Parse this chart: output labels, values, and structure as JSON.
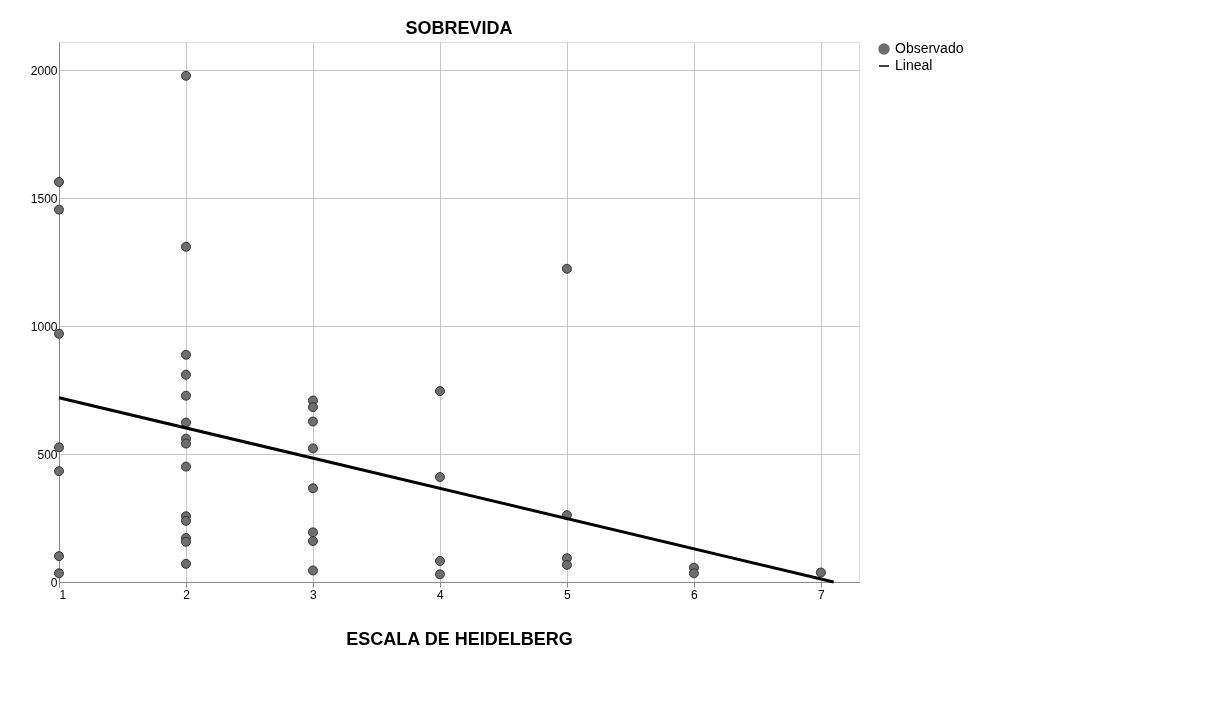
{
  "chart_data": {
    "type": "scatter",
    "title": "SOBREVIDA",
    "xlabel": "ESCALA DE HEIDELBERG",
    "xlim": [
      1,
      7.3
    ],
    "xticks": [
      1,
      2,
      3,
      4,
      5,
      6,
      7
    ],
    "ylim": [
      0,
      2110
    ],
    "yticks": [
      0,
      500,
      1000,
      1500,
      2000
    ],
    "grid": true,
    "legend": "top right",
    "series": [
      {
        "name": "Observado",
        "marker": "circle",
        "color": "#6e6e6e",
        "x": [
          1,
          1,
          1,
          1,
          1,
          1,
          1,
          2,
          2,
          2,
          2,
          2,
          2,
          2,
          2,
          2,
          2,
          2,
          2,
          2,
          2,
          3,
          3,
          3,
          3,
          3,
          3,
          3,
          3,
          4,
          4,
          4,
          4,
          5,
          5,
          5,
          5,
          6,
          6,
          7
        ],
        "values": [
          1563,
          1455,
          970,
          526,
          433,
          101,
          34,
          1978,
          1310,
          888,
          810,
          728,
          623,
          560,
          541,
          451,
          257,
          239,
          172,
          157,
          71,
          709,
          683,
          627,
          522,
          366,
          194,
          160,
          45,
          746,
          410,
          82,
          30,
          1224,
          261,
          93,
          67,
          56,
          34,
          37
        ]
      },
      {
        "name": "Lineal",
        "type": "line",
        "color": "#000000",
        "line_style": "solid",
        "marker": "none",
        "x": [
          1,
          7.1
        ],
        "values": [
          720,
          0
        ]
      }
    ]
  }
}
